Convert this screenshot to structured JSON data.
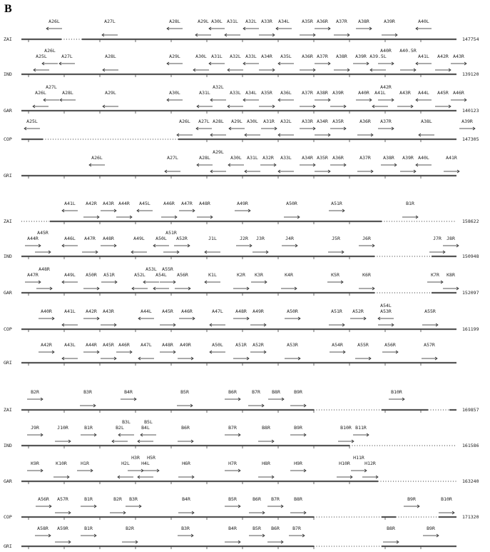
{
  "panel_label": "B",
  "blocks": [
    {
      "tracks": [
        {
          "name": "ZAI",
          "end": "147754",
          "genes": [
            "A26L",
            "A27L",
            "A28L",
            "A29L",
            "A30L",
            "A31L",
            "A32L",
            "A33R",
            "A34L",
            "A35R",
            "A36R",
            "A37R",
            "A38R",
            "A39R",
            "A40L"
          ]
        },
        {
          "name": "IND",
          "end": "139120",
          "genes": [
            "A26L",
            "A25L",
            "A27L",
            "A28L",
            "A29L",
            "A30L",
            "A31L",
            "A32L",
            "A33L",
            "A34R",
            "A35L",
            "A36R",
            "A37R",
            "A38R",
            "A39R",
            "A39.5L",
            "A40R",
            "A40.5R",
            "A41L",
            "A42R",
            "A43R"
          ]
        },
        {
          "name": "GAR",
          "end": "140123",
          "genes": [
            "A27L",
            "A26L",
            "A28L",
            "A29L",
            "A30L",
            "A31L",
            "A32L",
            "A33L",
            "A34L",
            "A35R",
            "A36L",
            "A37R",
            "A38R",
            "A39R",
            "A40R",
            "A41L",
            "A42R",
            "A43R",
            "A44L",
            "A45R",
            "A46R"
          ]
        },
        {
          "name": "COP",
          "end": "147305",
          "genes": [
            "A25L",
            "A26L",
            "A27L",
            "A28L",
            "A29L",
            "A30L",
            "A31R",
            "A32L",
            "A33R",
            "A34R",
            "A35R",
            "A36R",
            "A37R",
            "A38L",
            "A39R"
          ]
        },
        {
          "name": "GRI",
          "end": "",
          "genes": [
            "A26L",
            "A27L",
            "A28L",
            "A29L",
            "A30L",
            "A31L",
            "A32R",
            "A33L",
            "A34R",
            "A35R",
            "A36R",
            "A37R",
            "A38R",
            "A39R",
            "A40L",
            "A41R"
          ]
        }
      ]
    },
    {
      "tracks": [
        {
          "name": "ZAI",
          "end": "158622",
          "genes": [
            "A41L",
            "A42R",
            "A43R",
            "A44R",
            "A45L",
            "A46R",
            "A47R",
            "A48R",
            "A49R",
            "A50R",
            "A51R",
            "B1R"
          ]
        },
        {
          "name": "IND",
          "end": "150948",
          "genes": [
            "A44R",
            "A45R",
            "A46L",
            "A47R",
            "A48R",
            "A49L",
            "A50L",
            "A51R",
            "A52R",
            "J1L",
            "J2R",
            "J3R",
            "J4R",
            "J5R",
            "J6R",
            "J7R",
            "J8R"
          ]
        },
        {
          "name": "GAR",
          "end": "152097",
          "genes": [
            "A47R",
            "A48R",
            "A49L",
            "A50R",
            "A51R",
            "A52L",
            "A53L",
            "A54L",
            "A55R",
            "A56R",
            "K1L",
            "K2R",
            "K3R",
            "K4R",
            "K5R",
            "K6R",
            "K7R",
            "K8R"
          ]
        },
        {
          "name": "COP",
          "end": "161199",
          "genes": [
            "A40R",
            "A41L",
            "A42R",
            "A43R",
            "A44L",
            "A45R",
            "A46R",
            "A47L",
            "A48R",
            "A49R",
            "A50R",
            "A51R",
            "A52R",
            "A53R",
            "A54L",
            "A55R"
          ]
        },
        {
          "name": "GRI",
          "end": "",
          "genes": [
            "A42R",
            "A43L",
            "A44R",
            "A45R",
            "A46R",
            "A47L",
            "A48R",
            "A49R",
            "A50L",
            "A51R",
            "A52R",
            "A53R",
            "A54R",
            "A55R",
            "A56R",
            "A57R"
          ]
        }
      ]
    },
    {
      "tracks": [
        {
          "name": "ZAI",
          "end": "169857",
          "genes": [
            "B2R",
            "B3R",
            "B4R",
            "B5R",
            "B6R",
            "B7R",
            "B8R",
            "B9R",
            "B10R"
          ]
        },
        {
          "name": "IND",
          "end": "161586",
          "genes": [
            "J9R",
            "J10R",
            "B1R",
            "B2L",
            "B3L",
            "B4L",
            "B5L",
            "B6R",
            "B7R",
            "B8R",
            "B9R",
            "B10R",
            "B11R"
          ]
        },
        {
          "name": "GAR",
          "end": "163240",
          "genes": [
            "K9R",
            "K10R",
            "H1R",
            "H2L",
            "H3R",
            "H4L",
            "H5R",
            "H6R",
            "H7R",
            "H8R",
            "H9R",
            "H10R",
            "H11R",
            "H12R"
          ]
        },
        {
          "name": "COP",
          "end": "171320",
          "genes": [
            "A56R",
            "A57R",
            "B1R",
            "B2R",
            "B3R",
            "B4R",
            "B5R",
            "B6R",
            "B7R",
            "B8R",
            "B9R",
            "B10R"
          ]
        },
        {
          "name": "GRI",
          "end": "",
          "genes": [
            "A58R",
            "A59R",
            "B1R",
            "B2R",
            "B3R",
            "B4R",
            "B5R",
            "B6R",
            "B7R",
            "B8R",
            "B9R"
          ]
        }
      ]
    }
  ]
}
